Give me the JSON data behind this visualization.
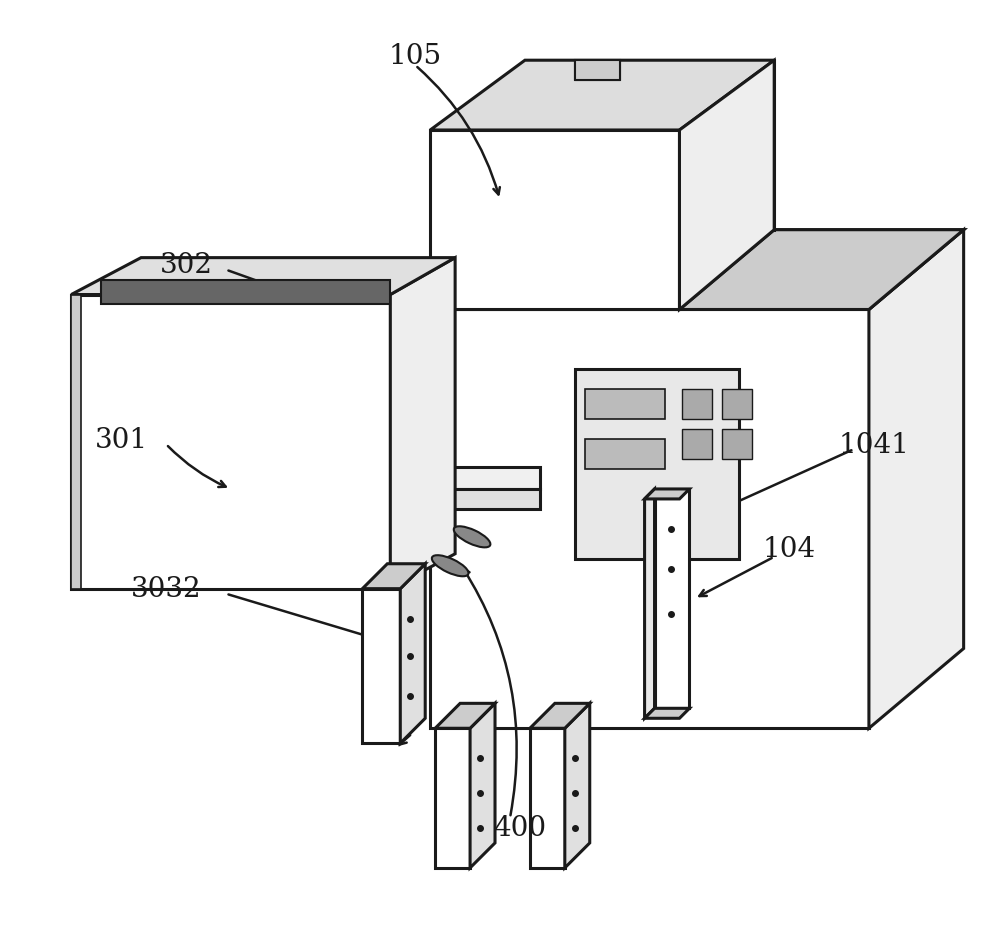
{
  "bg_color": "#ffffff",
  "line_color": "#1a1a1a",
  "line_width": 2.2,
  "fig_width": 10.0,
  "fig_height": 9.53,
  "dpi": 100
}
